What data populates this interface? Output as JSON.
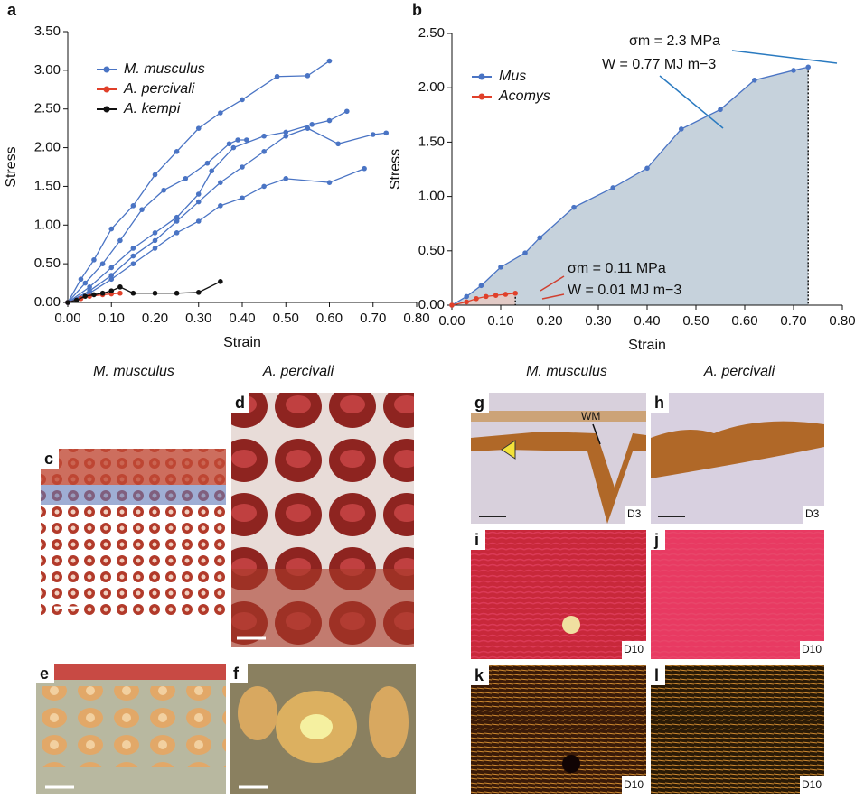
{
  "chart_data": [
    {
      "type": "line",
      "panel": "a",
      "x_label": "Strain",
      "y_label": "Stress",
      "legend": "upper left",
      "xlim": [
        0,
        0.8
      ],
      "ylim": [
        0,
        3.5
      ],
      "xticks": [
        {
          "value": 0,
          "label": "0.00"
        },
        {
          "value": 0.1,
          "label": "0.10"
        },
        {
          "value": 0.2,
          "label": "0.20"
        },
        {
          "value": 0.3,
          "label": "0.30"
        },
        {
          "value": 0.4,
          "label": "0.40"
        },
        {
          "value": 0.5,
          "label": "0.50"
        },
        {
          "value": 0.6,
          "label": "0.60"
        },
        {
          "value": 0.7,
          "label": "0.70"
        },
        {
          "value": 0.8,
          "label": "0.80"
        }
      ],
      "yticks": [
        {
          "value": 0,
          "label": "0.00"
        },
        {
          "value": 0.5,
          "label": "0.50"
        },
        {
          "value": 1,
          "label": "1.00"
        },
        {
          "value": 1.5,
          "label": "1.50"
        },
        {
          "value": 2,
          "label": "2.00"
        },
        {
          "value": 2.5,
          "label": "2.50"
        },
        {
          "value": 3,
          "label": "3.00"
        },
        {
          "value": 3.5,
          "label": "3.50"
        }
      ],
      "series": [
        {
          "name": "M. musculus",
          "color": "#4a74c4",
          "x": [
            0,
            0.03,
            0.06,
            0.1,
            0.15,
            0.2,
            0.25,
            0.3,
            0.35,
            0.4,
            0.48,
            0.55,
            0.6
          ],
          "values": [
            0,
            0.3,
            0.55,
            0.95,
            1.25,
            1.65,
            1.95,
            2.25,
            2.45,
            2.62,
            2.92,
            2.93,
            3.12
          ]
        },
        {
          "color": "#4a74c4",
          "x": [
            0,
            0.04,
            0.08,
            0.12,
            0.17,
            0.22,
            0.27,
            0.32,
            0.37,
            0.39,
            0.41
          ],
          "values": [
            0,
            0.25,
            0.5,
            0.8,
            1.2,
            1.45,
            1.6,
            1.8,
            2.05,
            2.1,
            2.1
          ]
        },
        {
          "color": "#4a74c4",
          "x": [
            0,
            0.05,
            0.1,
            0.15,
            0.2,
            0.25,
            0.3,
            0.33,
            0.38,
            0.45,
            0.5,
            0.56,
            0.6,
            0.64
          ],
          "values": [
            0,
            0.2,
            0.45,
            0.7,
            0.9,
            1.1,
            1.4,
            1.7,
            2.0,
            2.15,
            2.2,
            2.3,
            2.35,
            2.47
          ]
        },
        {
          "color": "#4a74c4",
          "x": [
            0,
            0.05,
            0.1,
            0.15,
            0.2,
            0.25,
            0.3,
            0.35,
            0.4,
            0.45,
            0.5,
            0.55,
            0.62,
            0.7,
            0.73
          ],
          "values": [
            0,
            0.15,
            0.35,
            0.6,
            0.8,
            1.05,
            1.3,
            1.55,
            1.75,
            1.95,
            2.15,
            2.25,
            2.05,
            2.17,
            2.19
          ]
        },
        {
          "color": "#4a74c4",
          "x": [
            0,
            0.05,
            0.1,
            0.15,
            0.2,
            0.25,
            0.3,
            0.35,
            0.4,
            0.45,
            0.5,
            0.6,
            0.68
          ],
          "values": [
            0,
            0.12,
            0.3,
            0.5,
            0.7,
            0.9,
            1.05,
            1.25,
            1.35,
            1.5,
            1.6,
            1.55,
            1.73
          ]
        },
        {
          "name": "A. percivali",
          "color": "#e0402a",
          "x": [
            0,
            0.03,
            0.05,
            0.08,
            0.1,
            0.12
          ],
          "values": [
            0,
            0.05,
            0.08,
            0.1,
            0.11,
            0.12
          ]
        },
        {
          "name": "A. kempi",
          "color": "#111111",
          "x": [
            0,
            0.02,
            0.04,
            0.06,
            0.08,
            0.1,
            0.12,
            0.15,
            0.2,
            0.25,
            0.3,
            0.35
          ],
          "values": [
            0,
            0.03,
            0.08,
            0.1,
            0.12,
            0.15,
            0.2,
            0.12,
            0.12,
            0.12,
            0.13,
            0.27
          ]
        }
      ]
    },
    {
      "type": "area",
      "panel": "b",
      "x_label": "Strain",
      "y_label": "Stress",
      "legend": "upper left",
      "fill": "#c6d2dc",
      "xlim": [
        0,
        0.8
      ],
      "ylim": [
        0,
        2.5
      ],
      "xticks": [
        {
          "value": 0,
          "label": "0.00"
        },
        {
          "value": 0.1,
          "label": "0.10"
        },
        {
          "value": 0.2,
          "label": "0.20"
        },
        {
          "value": 0.3,
          "label": "0.30"
        },
        {
          "value": 0.4,
          "label": "0.40"
        },
        {
          "value": 0.5,
          "label": "0.50"
        },
        {
          "value": 0.6,
          "label": "0.60"
        },
        {
          "value": 0.7,
          "label": "0.70"
        },
        {
          "value": 0.8,
          "label": "0.80"
        }
      ],
      "yticks": [
        {
          "value": 0,
          "label": "0.00"
        },
        {
          "value": 0.5,
          "label": "0.50"
        },
        {
          "value": 1,
          "label": "1.00"
        },
        {
          "value": 1.5,
          "label": "1.50"
        },
        {
          "value": 2,
          "label": "2.00"
        },
        {
          "value": 2.5,
          "label": "2.50"
        }
      ],
      "series": [
        {
          "name": "Mus",
          "color": "#4a74c4",
          "x": [
            0,
            0.03,
            0.06,
            0.1,
            0.15,
            0.18,
            0.25,
            0.33,
            0.4,
            0.47,
            0.55,
            0.62,
            0.7,
            0.73
          ],
          "values": [
            0,
            0.08,
            0.18,
            0.35,
            0.48,
            0.62,
            0.9,
            1.08,
            1.26,
            1.62,
            1.8,
            2.07,
            2.16,
            2.19
          ]
        },
        {
          "name": "Acomys",
          "color": "#e0402a",
          "x": [
            0,
            0.03,
            0.05,
            0.07,
            0.09,
            0.11,
            0.13
          ],
          "values": [
            0,
            0.03,
            0.06,
            0.08,
            0.09,
            0.1,
            0.11
          ]
        }
      ],
      "annotations": [
        "σm = 2.3 MPa",
        "W = 0.77 MJ m−3",
        "σm = 0.11 MPa",
        "W = 0.01 MJ m−3"
      ]
    }
  ],
  "panels": {
    "headers": [
      "M. musculus",
      "A. percivali",
      "M. musculus",
      "A. percivali"
    ],
    "letters": [
      "c",
      "d",
      "e",
      "f",
      "g",
      "h",
      "i",
      "j",
      "k",
      "l"
    ],
    "wm": "WM",
    "days": [
      "D3",
      "D3",
      "D10",
      "D10",
      "D10",
      "D10"
    ]
  }
}
